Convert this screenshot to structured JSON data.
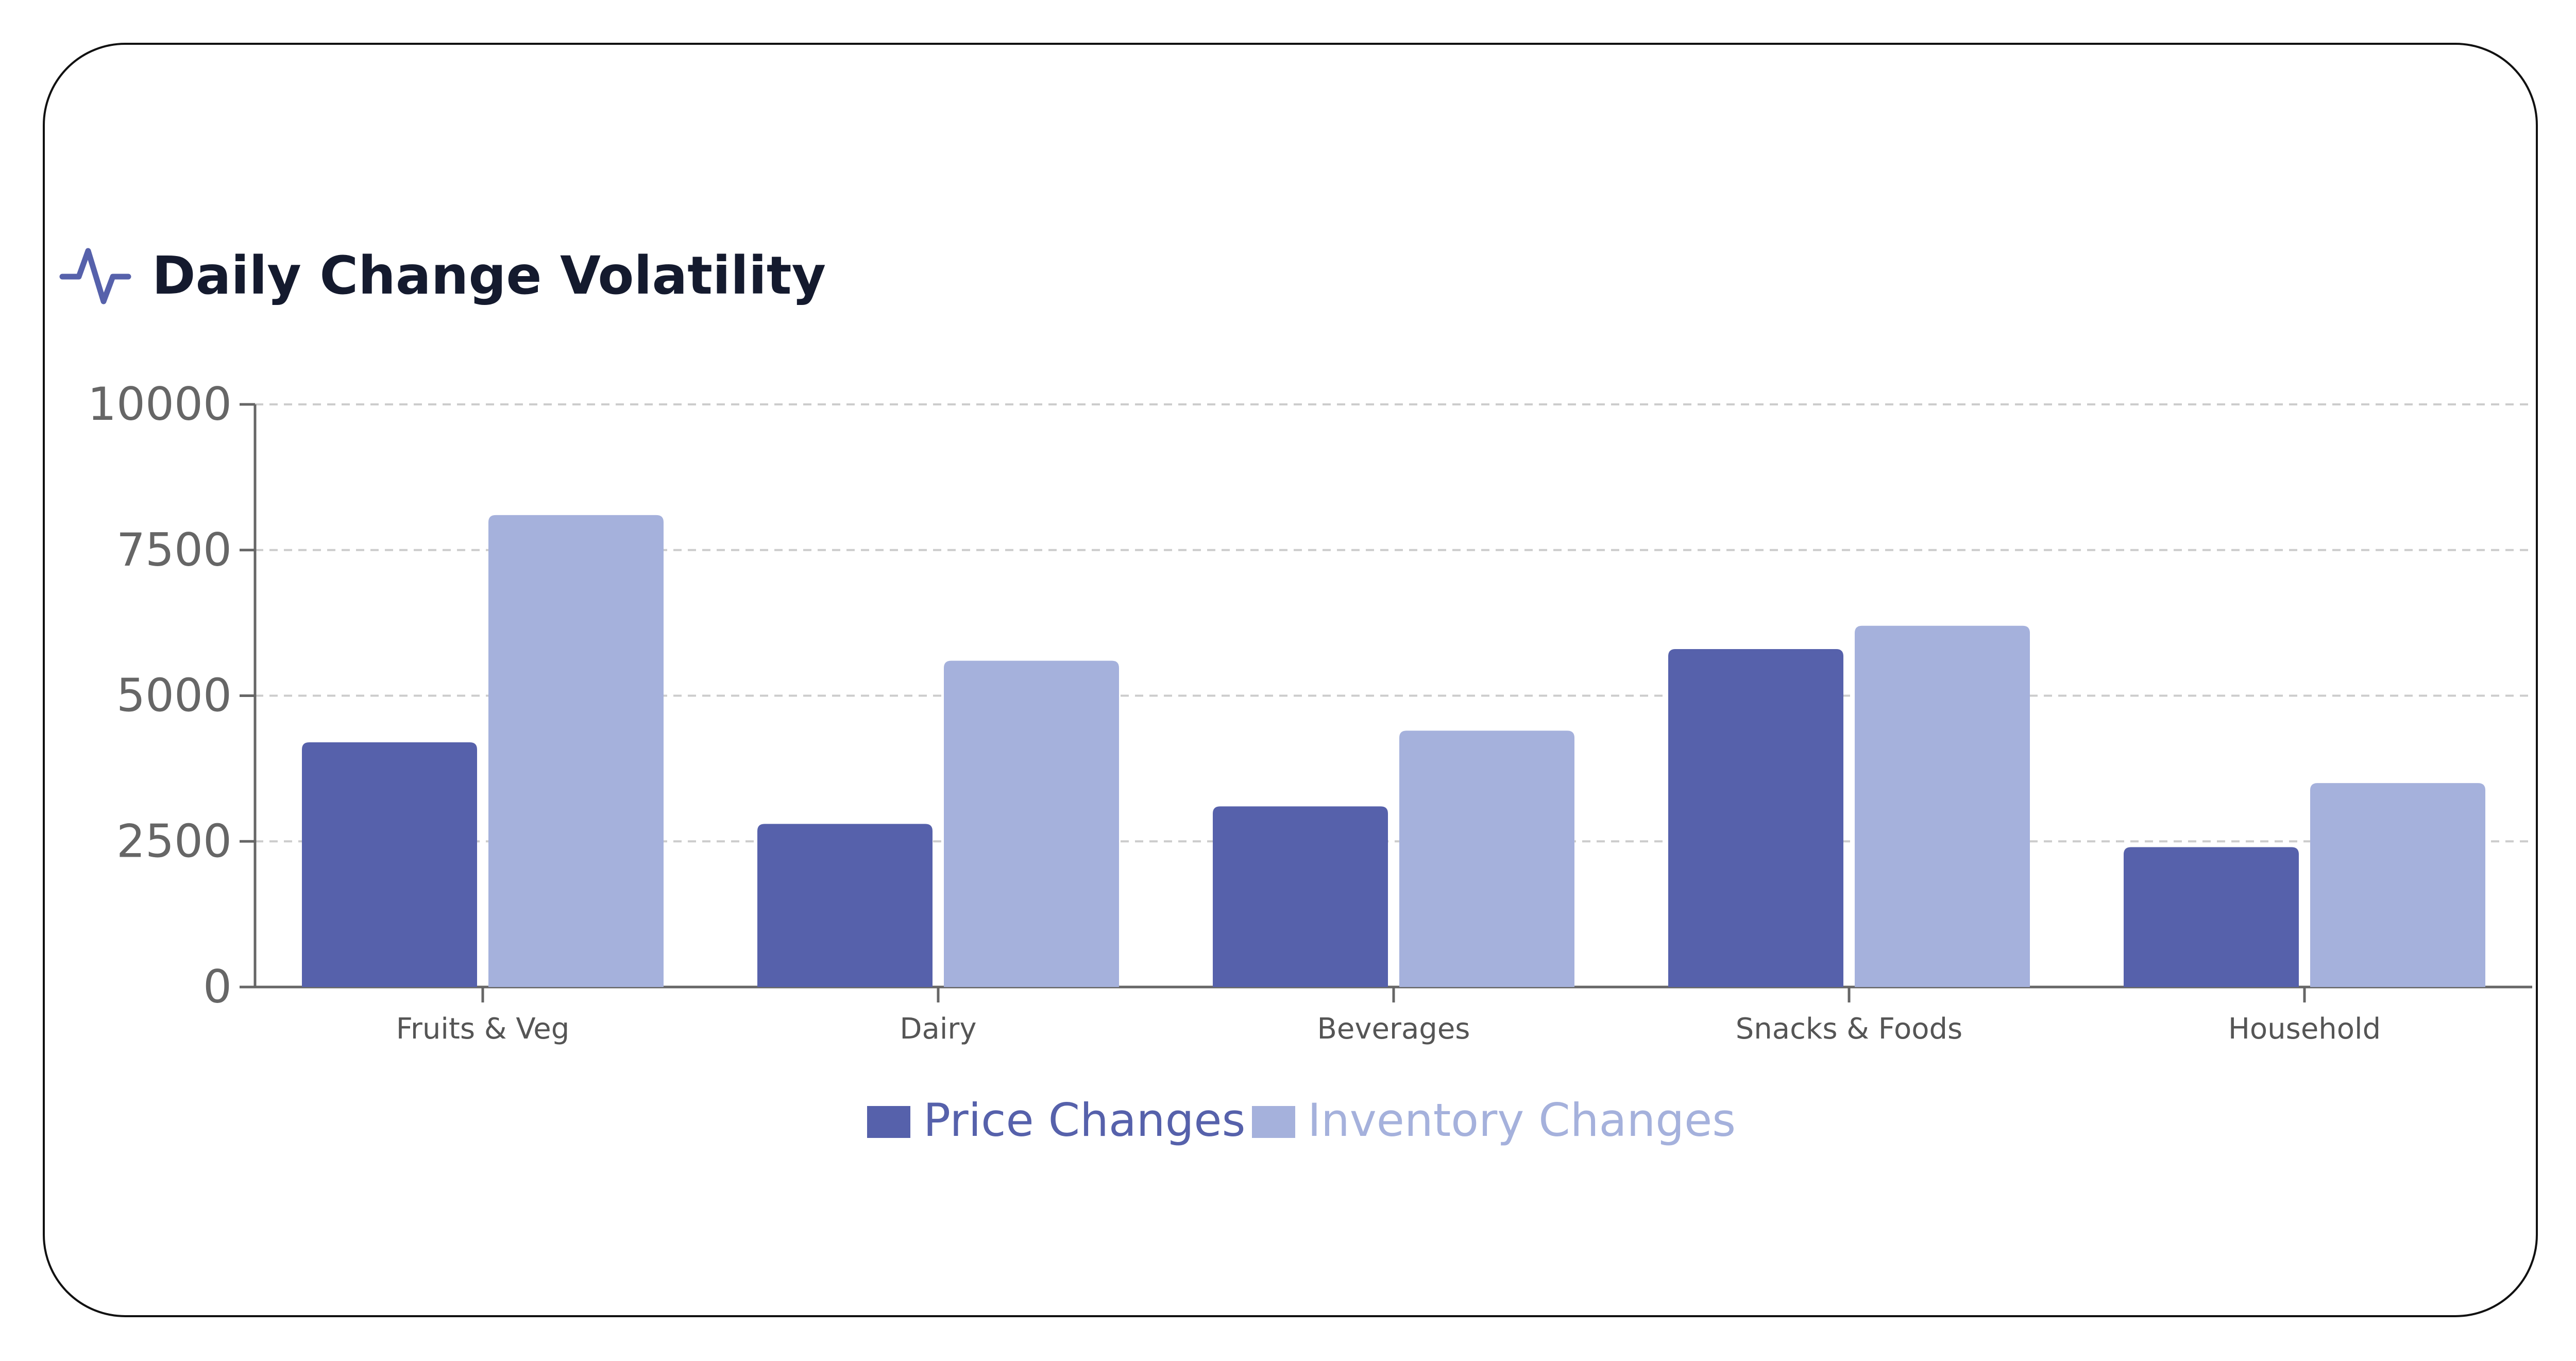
{
  "header": {
    "title": "Daily Change Volatility",
    "icon": "activity-pulse-icon"
  },
  "colors": {
    "price": "#5661ab",
    "inventory": "#a5b1dc",
    "title": "#141a2e",
    "axis": "#666666",
    "grid": "#cccccc"
  },
  "chart_data": {
    "type": "bar",
    "categories": [
      "Fruits & Veg",
      "Dairy",
      "Beverages",
      "Snacks & Foods",
      "Household"
    ],
    "series": [
      {
        "name": "Price Changes",
        "values": [
          4200,
          2800,
          3100,
          5800,
          2400
        ],
        "color": "#5661ab"
      },
      {
        "name": "Inventory Changes",
        "values": [
          8100,
          5600,
          4400,
          6200,
          3500
        ],
        "color": "#a5b1dc"
      }
    ],
    "y_ticks": [
      "0",
      "2500",
      "5000",
      "7500",
      "10000"
    ],
    "ylim": [
      0,
      10000
    ],
    "grid": true,
    "legend_position": "bottom-center",
    "title": "Daily Change Volatility"
  }
}
